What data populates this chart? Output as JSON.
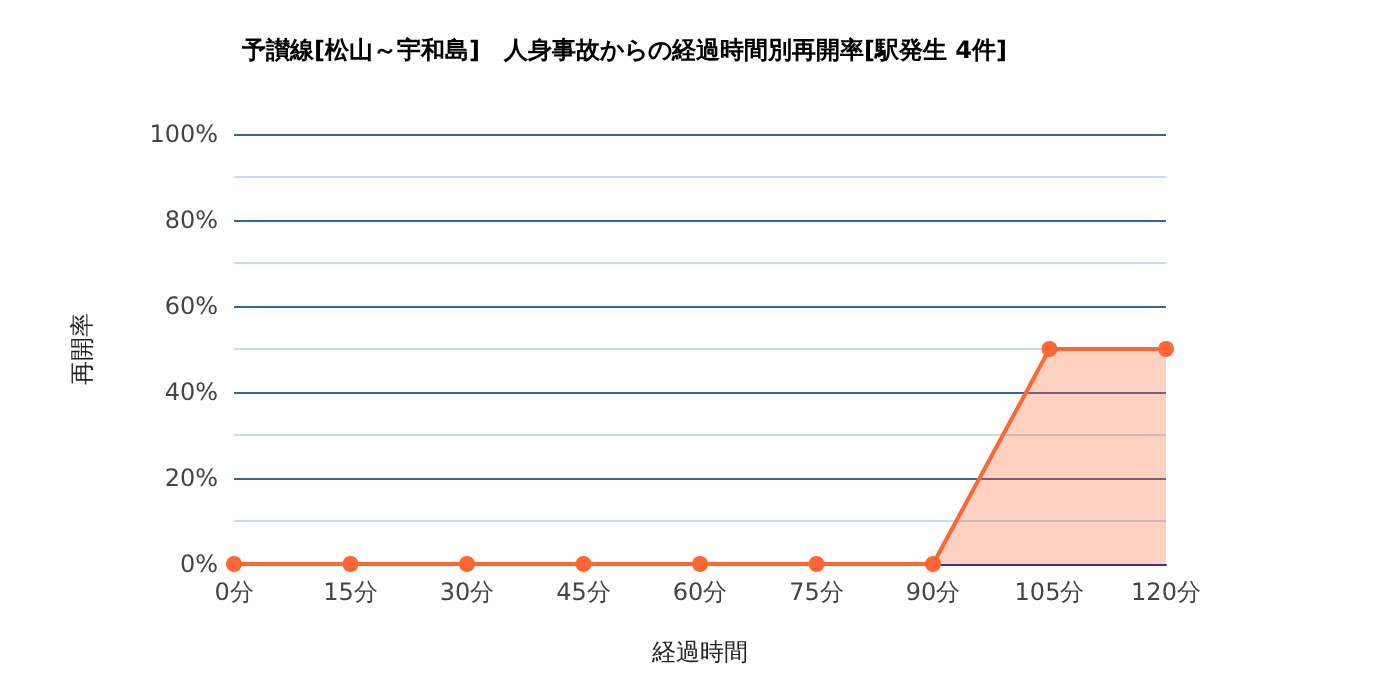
{
  "chart_data": {
    "type": "area",
    "title": "予讃線[松山～宇和島]　人身事故からの経過時間別再開率[駅発生 4件]",
    "xlabel": "経過時間",
    "ylabel": "再開率",
    "categories": [
      "0分",
      "15分",
      "30分",
      "45分",
      "60分",
      "75分",
      "90分",
      "105分",
      "120分"
    ],
    "series": [
      {
        "color": "#ff6633",
        "values": [
          0,
          0,
          0,
          0,
          0,
          0,
          0,
          50,
          50
        ]
      }
    ],
    "ylim": [
      0,
      100
    ],
    "yticks": [
      {
        "value": 0,
        "label": "0%"
      },
      {
        "value": 10,
        "label": null
      },
      {
        "value": 20,
        "label": "20%"
      },
      {
        "value": 30,
        "label": null
      },
      {
        "value": 40,
        "label": "40%"
      },
      {
        "value": 50,
        "label": null
      },
      {
        "value": 60,
        "label": "60%"
      },
      {
        "value": 70,
        "label": null
      },
      {
        "value": 80,
        "label": "80%"
      },
      {
        "value": 90,
        "label": null
      },
      {
        "value": 100,
        "label": "100%"
      }
    ],
    "grid": true,
    "marker": "circle",
    "line_style": "solid"
  }
}
